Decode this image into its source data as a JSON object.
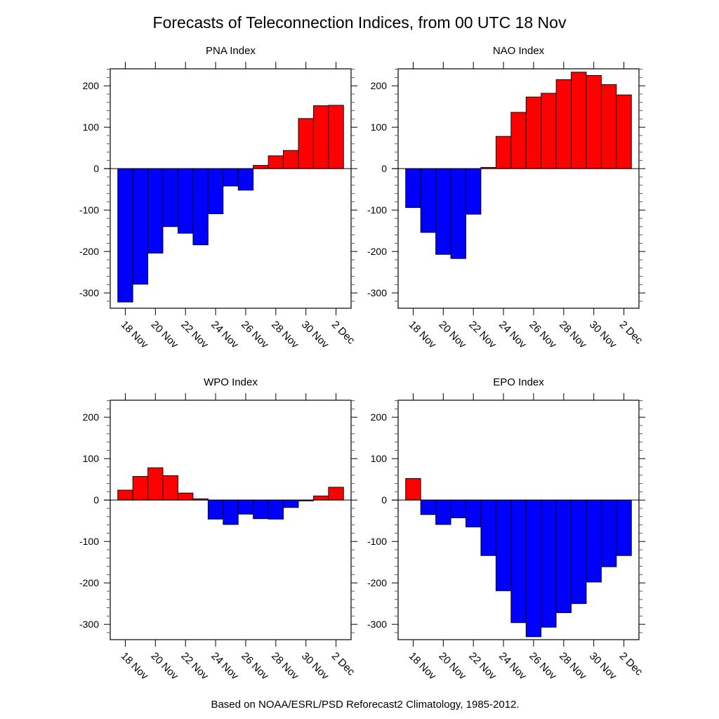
{
  "title": "Forecasts of Teleconnection Indices, from 00 UTC 18 Nov",
  "footer": "Based on NOAA/ESRL/PSD Reforecast2 Climatology, 1985-2012.",
  "colors": {
    "positive": "#ff0000",
    "negative": "#0000ff",
    "frame": "#000000"
  },
  "chart_data": [
    {
      "type": "bar",
      "title": "PNA Index",
      "xlabel": "",
      "ylabel": "",
      "x": [
        "18 Nov",
        "19 Nov",
        "20 Nov",
        "21 Nov",
        "22 Nov",
        "23 Nov",
        "24 Nov",
        "25 Nov",
        "26 Nov",
        "27 Nov",
        "28 Nov",
        "29 Nov",
        "30 Nov",
        "1 Dec",
        "2 Dec"
      ],
      "values": [
        -322,
        -279,
        -204,
        -140,
        -156,
        -184,
        -109,
        -42,
        -52,
        8,
        31,
        44,
        121,
        152,
        153
      ],
      "xticks": [
        "18 Nov",
        "20 Nov",
        "22 Nov",
        "24 Nov",
        "26 Nov",
        "28 Nov",
        "30 Nov",
        "2 Dec"
      ],
      "yticks": [
        "200",
        "100",
        "0",
        "-100",
        "-200",
        "-300"
      ],
      "ylim": [
        -337,
        241
      ]
    },
    {
      "type": "bar",
      "title": "NAO Index",
      "xlabel": "",
      "ylabel": "",
      "x": [
        "18 Nov",
        "19 Nov",
        "20 Nov",
        "21 Nov",
        "22 Nov",
        "23 Nov",
        "24 Nov",
        "25 Nov",
        "26 Nov",
        "27 Nov",
        "28 Nov",
        "29 Nov",
        "30 Nov",
        "1 Dec",
        "2 Dec"
      ],
      "values": [
        -94,
        -154,
        -207,
        -217,
        -110,
        3,
        78,
        136,
        173,
        182,
        215,
        233,
        225,
        203,
        178
      ],
      "xticks": [
        "18 Nov",
        "20 Nov",
        "22 Nov",
        "24 Nov",
        "26 Nov",
        "28 Nov",
        "30 Nov",
        "2 Dec"
      ],
      "yticks": [
        "200",
        "100",
        "0",
        "-100",
        "-200",
        "-300"
      ],
      "ylim": [
        -337,
        241
      ]
    },
    {
      "type": "bar",
      "title": "WPO Index",
      "xlabel": "",
      "ylabel": "",
      "x": [
        "18 Nov",
        "19 Nov",
        "20 Nov",
        "21 Nov",
        "22 Nov",
        "23 Nov",
        "24 Nov",
        "25 Nov",
        "26 Nov",
        "27 Nov",
        "28 Nov",
        "29 Nov",
        "30 Nov",
        "1 Dec",
        "2 Dec"
      ],
      "values": [
        24,
        57,
        78,
        59,
        17,
        3,
        -46,
        -59,
        -34,
        -45,
        -46,
        -18,
        -2,
        10,
        31
      ],
      "xticks": [
        "18 Nov",
        "20 Nov",
        "22 Nov",
        "24 Nov",
        "26 Nov",
        "28 Nov",
        "30 Nov",
        "2 Dec"
      ],
      "yticks": [
        "200",
        "100",
        "0",
        "-100",
        "-200",
        "-300"
      ],
      "ylim": [
        -337,
        241
      ]
    },
    {
      "type": "bar",
      "title": "EPO Index",
      "xlabel": "",
      "ylabel": "",
      "x": [
        "18 Nov",
        "19 Nov",
        "20 Nov",
        "21 Nov",
        "22 Nov",
        "23 Nov",
        "24 Nov",
        "25 Nov",
        "26 Nov",
        "27 Nov",
        "28 Nov",
        "29 Nov",
        "30 Nov",
        "1 Dec",
        "2 Dec"
      ],
      "values": [
        52,
        -35,
        -59,
        -43,
        -65,
        -134,
        -219,
        -296,
        -330,
        -307,
        -272,
        -250,
        -198,
        -161,
        -134
      ],
      "xticks": [
        "18 Nov",
        "20 Nov",
        "22 Nov",
        "24 Nov",
        "26 Nov",
        "28 Nov",
        "30 Nov",
        "2 Dec"
      ],
      "yticks": [
        "200",
        "100",
        "0",
        "-100",
        "-200",
        "-300"
      ],
      "ylim": [
        -337,
        241
      ]
    }
  ]
}
